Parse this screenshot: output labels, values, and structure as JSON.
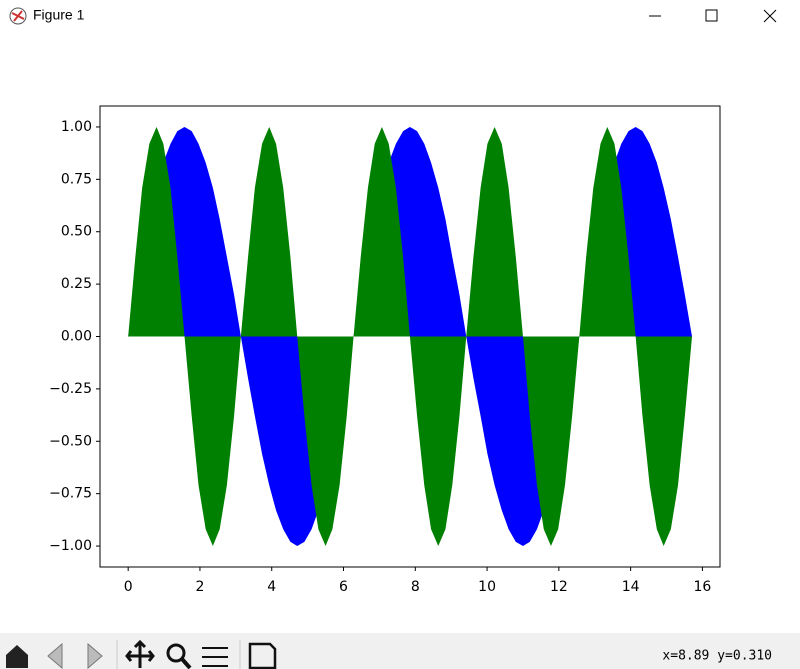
{
  "window": {
    "title": "Figure 1",
    "status": "x=8.89 y=0.310"
  },
  "chart_data": {
    "type": "fill",
    "x": [
      0,
      0.2,
      0.39,
      0.59,
      0.79,
      0.98,
      1.18,
      1.37,
      1.57,
      1.77,
      1.96,
      2.16,
      2.36,
      2.55,
      2.75,
      2.95,
      3.14,
      3.34,
      3.53,
      3.73,
      3.93,
      4.12,
      4.32,
      4.52,
      4.71,
      4.91,
      5.11,
      5.3,
      5.5,
      5.69,
      5.89,
      6.09,
      6.28,
      6.48,
      6.68,
      6.87,
      7.07,
      7.26,
      7.46,
      7.66,
      7.85,
      8.05,
      8.25,
      8.44,
      8.64,
      8.84,
      9.03,
      9.23,
      9.42,
      9.62,
      9.82,
      10.01,
      10.21,
      10.41,
      10.6,
      10.8,
      11,
      11.19,
      11.39,
      11.58,
      11.78,
      11.98,
      12.17,
      12.37,
      12.57,
      12.76,
      12.96,
      13.16,
      13.35,
      13.55,
      13.74,
      13.94,
      14.14,
      14.33,
      14.53,
      14.73,
      14.92,
      15.12,
      15.32,
      15.51,
      15.71
    ],
    "series": [
      {
        "color": "#0000ff",
        "values": [
          0,
          0.2,
          0.38,
          0.56,
          0.71,
          0.83,
          0.92,
          0.98,
          1,
          0.98,
          0.92,
          0.83,
          0.71,
          0.56,
          0.38,
          0.2,
          0,
          -0.2,
          -0.38,
          -0.56,
          -0.71,
          -0.83,
          -0.92,
          -0.98,
          -1,
          -0.98,
          -0.92,
          -0.83,
          -0.71,
          -0.56,
          -0.38,
          -0.2,
          0,
          0.2,
          0.38,
          0.56,
          0.71,
          0.83,
          0.92,
          0.98,
          1,
          0.98,
          0.92,
          0.83,
          0.71,
          0.56,
          0.38,
          0.2,
          0,
          -0.2,
          -0.38,
          -0.56,
          -0.71,
          -0.83,
          -0.92,
          -0.98,
          -1,
          -0.98,
          -0.92,
          -0.83,
          -0.71,
          -0.56,
          -0.38,
          -0.2,
          0,
          0.2,
          0.38,
          0.56,
          0.71,
          0.83,
          0.92,
          0.98,
          1,
          0.98,
          0.92,
          0.83,
          0.71,
          0.56,
          0.38,
          0.2,
          0
        ]
      },
      {
        "color": "#008000",
        "values": [
          0,
          0.38,
          0.71,
          0.92,
          1,
          0.92,
          0.71,
          0.38,
          0,
          -0.38,
          -0.71,
          -0.92,
          -1,
          -0.92,
          -0.71,
          -0.38,
          0,
          0.38,
          0.71,
          0.92,
          1,
          0.92,
          0.71,
          0.38,
          0,
          -0.38,
          -0.71,
          -0.92,
          -1,
          -0.92,
          -0.71,
          -0.38,
          0,
          0.38,
          0.71,
          0.92,
          1,
          0.92,
          0.71,
          0.38,
          0,
          -0.38,
          -0.71,
          -0.92,
          -1,
          -0.92,
          -0.71,
          -0.38,
          0,
          0.38,
          0.71,
          0.92,
          1,
          0.92,
          0.71,
          0.38,
          0,
          -0.38,
          -0.71,
          -0.92,
          -1,
          -0.92,
          -0.71,
          -0.38,
          0,
          0.38,
          0.71,
          0.92,
          1,
          0.92,
          0.71,
          0.38,
          0,
          -0.38,
          -0.71,
          -0.92,
          -1,
          -0.92,
          -0.71,
          -0.38,
          0
        ]
      }
    ],
    "xlim": [
      -0.785,
      16.49
    ],
    "xticks": [
      0,
      2,
      4,
      6,
      8,
      10,
      12,
      14,
      16
    ],
    "ylim": [
      -1.1,
      1.1
    ],
    "yticks": [
      {
        "value": -1,
        "label": "−1.00"
      },
      {
        "value": -0.75,
        "label": "−0.75"
      },
      {
        "value": -0.5,
        "label": "−0.50"
      },
      {
        "value": -0.25,
        "label": "−0.25"
      },
      {
        "value": 0,
        "label": "0.00"
      },
      {
        "value": 0.25,
        "label": "0.25"
      },
      {
        "value": 0.5,
        "label": "0.50"
      },
      {
        "value": 0.75,
        "label": "0.75"
      },
      {
        "value": 1,
        "label": "1.00"
      }
    ]
  }
}
